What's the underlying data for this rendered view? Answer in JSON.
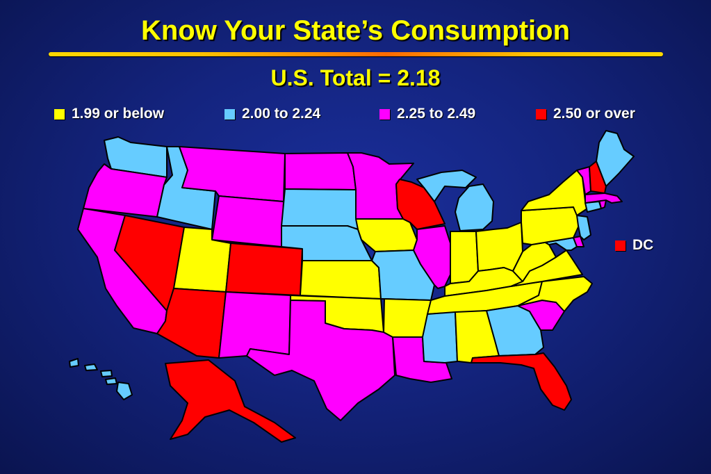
{
  "title": "Know Your State’s Consumption",
  "subtitle": "U.S. Total = 2.18",
  "colors": {
    "low": "#ffff00",
    "mid_low": "#66ccff",
    "mid_high": "#ff00ff",
    "high": "#ff0000"
  },
  "legend": [
    {
      "label": "1.99 or below",
      "color": "#ffff00"
    },
    {
      "label": "2.00 to 2.24",
      "color": "#66ccff"
    },
    {
      "label": "2.25 to 2.49",
      "color": "#ff00ff"
    },
    {
      "label": "2.50 or over",
      "color": "#ff0000"
    }
  ],
  "dc": {
    "label": "DC",
    "color": "#ff0000"
  },
  "states": {
    "WA": "mid_low",
    "OR": "mid_high",
    "CA": "mid_high",
    "NV": "high",
    "ID": "mid_low",
    "MT": "mid_high",
    "WY": "mid_high",
    "UT": "low",
    "AZ": "high",
    "CO": "high",
    "NM": "mid_high",
    "ND": "mid_high",
    "SD": "mid_low",
    "NE": "mid_low",
    "KS": "low",
    "OK": "low",
    "TX": "mid_high",
    "MN": "mid_high",
    "IA": "low",
    "MO": "mid_low",
    "AR": "low",
    "LA": "mid_high",
    "WI": "high",
    "IL": "mid_high",
    "MI": "mid_low",
    "IN": "low",
    "OH": "low",
    "KY": "low",
    "TN": "low",
    "MS": "mid_low",
    "AL": "low",
    "GA": "mid_low",
    "FL": "high",
    "SC": "mid_high",
    "NC": "low",
    "VA": "low",
    "WV": "low",
    "MD": "mid_low",
    "DE": "mid_high",
    "PA": "low",
    "NJ": "mid_low",
    "NY": "low",
    "CT": "mid_low",
    "RI": "mid_high",
    "MA": "mid_high",
    "VT": "mid_high",
    "NH": "high",
    "ME": "mid_low",
    "AK": "high",
    "HI": "mid_low"
  }
}
